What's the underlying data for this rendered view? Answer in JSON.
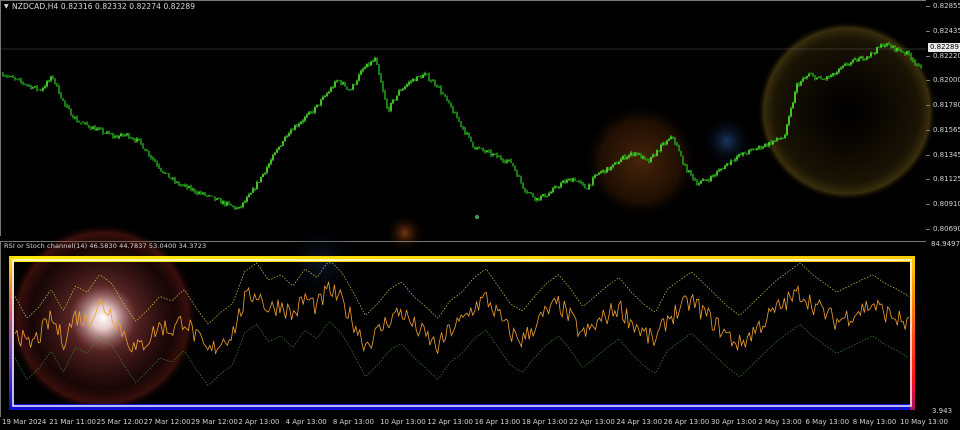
{
  "window": {
    "symbol_header": "NZDCAD,H4  0.82316 0.82332 0.82274 0.82289",
    "indicator_header": "RSI or Stoch channel(14) 46.5830 44.7837 53.0400 34.3723",
    "sub_top_value": "84.9497",
    "sub_bottom_value": "3.943",
    "current_price": "0.82289"
  },
  "price_axis": [
    "0.82855",
    "0.82435",
    "0.82220",
    "0.82000",
    "0.81780",
    "0.81565",
    "0.81345",
    "0.81125",
    "0.80910",
    "0.80690"
  ],
  "time_axis": [
    "19 Mar 2024",
    "21 Mar 11:00",
    "25 Mar 12:00",
    "27 Mar 12:00",
    "29 Mar 12:00",
    "2 Apr 13:00",
    "4 Apr 13:00",
    "8 Apr 13:00",
    "10 Apr 13:00",
    "12 Apr 13:00",
    "16 Apr 13:00",
    "18 Apr 13:00",
    "22 Apr 13:00",
    "24 Apr 13:00",
    "26 Apr 13:00",
    "30 Apr 13:00",
    "2 May 13:00",
    "6 May 13:00",
    "8 May 13:00",
    "10 May 13:00"
  ],
  "colors": {
    "candles": "#33dd22",
    "oscillator": "#f0a030",
    "channel_upper": "#c8d040",
    "channel_lower": "#3a8a2a",
    "frame_top": "#ffe600",
    "frame_bottom": "#1010d0",
    "frame_left": "#3030c0",
    "frame_right": "#ff2020"
  },
  "chart_data": {
    "type": "line",
    "title": "NZDCAD,H4",
    "ylim": [
      0.8069,
      0.82855
    ],
    "close_path": [
      0.8221,
      0.8215,
      0.821,
      0.8205,
      0.8218,
      0.819,
      0.8175,
      0.817,
      0.8165,
      0.816,
      0.8162,
      0.8155,
      0.814,
      0.8125,
      0.8115,
      0.811,
      0.8105,
      0.81,
      0.8095,
      0.809,
      0.8105,
      0.8125,
      0.8145,
      0.8165,
      0.8175,
      0.8185,
      0.82,
      0.8215,
      0.8205,
      0.8225,
      0.8235,
      0.8185,
      0.8205,
      0.8215,
      0.822,
      0.821,
      0.819,
      0.817,
      0.815,
      0.8145,
      0.814,
      0.8135,
      0.811,
      0.81,
      0.8105,
      0.8115,
      0.812,
      0.811,
      0.8125,
      0.813,
      0.814,
      0.8145,
      0.8135,
      0.815,
      0.816,
      0.813,
      0.8115,
      0.812,
      0.813,
      0.814,
      0.8145,
      0.815,
      0.8155,
      0.816,
      0.821,
      0.822,
      0.8215,
      0.822,
      0.823,
      0.8235,
      0.824,
      0.825,
      0.8245,
      0.824,
      0.8225
    ],
    "osc_path": [
      55,
      40,
      48,
      60,
      45,
      62,
      58,
      70,
      64,
      50,
      38,
      46,
      55,
      52,
      60,
      47,
      36,
      44,
      50,
      72,
      78,
      66,
      70,
      62,
      74,
      68,
      80,
      72,
      58,
      42,
      50,
      60,
      65,
      55,
      48,
      40,
      52,
      58,
      68,
      74,
      62,
      50,
      45,
      55,
      64,
      70,
      60,
      48,
      55,
      62,
      68,
      58,
      50,
      44,
      60,
      66,
      72,
      64,
      56,
      48,
      42,
      50,
      58,
      66,
      72,
      78,
      70,
      64,
      58,
      62,
      66,
      70,
      64,
      60,
      55
    ]
  }
}
